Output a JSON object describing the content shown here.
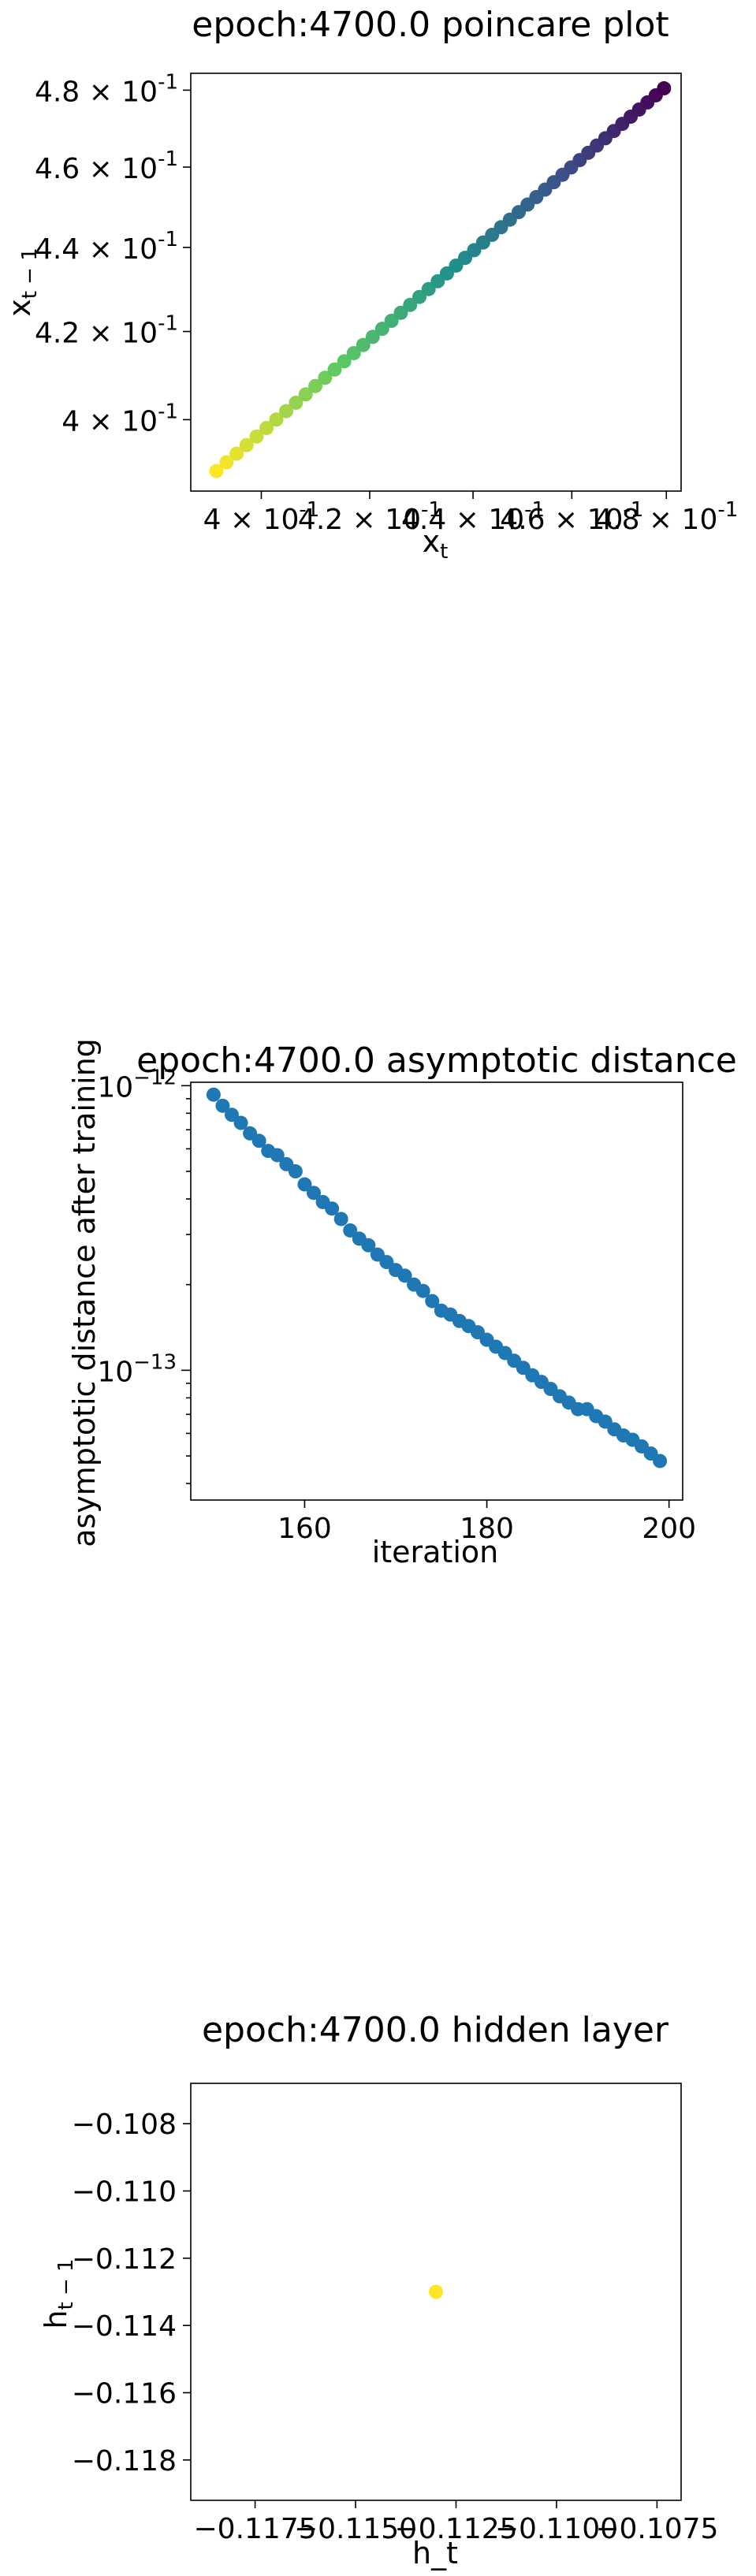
{
  "chart_data": [
    {
      "type": "scatter",
      "title": "epoch:4700.0 poincare plot",
      "xlabel": "x_t",
      "ylabel": "x_{t-1}",
      "x_scale": "log",
      "y_scale": "log",
      "xlim": [
        0.3875,
        0.4832
      ],
      "ylim": [
        0.3845,
        0.4845
      ],
      "x_ticks": [
        {
          "value": 0.4,
          "base": "4",
          "exp": "-1"
        },
        {
          "value": 0.42,
          "base": "4.2",
          "exp": "-1"
        },
        {
          "value": 0.44,
          "base": "4.4",
          "exp": "-1"
        },
        {
          "value": 0.46,
          "base": "4.6",
          "exp": "-1"
        },
        {
          "value": 0.48,
          "base": "4.8",
          "exp": "-1"
        }
      ],
      "y_ticks": [
        {
          "value": 0.4,
          "base": "4",
          "exp": "-1"
        },
        {
          "value": 0.42,
          "base": "4.2",
          "exp": "-1"
        },
        {
          "value": 0.44,
          "base": "4.4",
          "exp": "-1"
        },
        {
          "value": 0.46,
          "base": "4.6",
          "exp": "-1"
        },
        {
          "value": 0.48,
          "base": "4.8",
          "exp": "-1"
        }
      ],
      "grid": false,
      "colormap": "viridis",
      "points": {
        "count": 50,
        "x_first": 0.392,
        "x_last": 0.4795,
        "y_first": 0.3888,
        "y_last": 0.4805
      }
    },
    {
      "type": "scatter",
      "title": "epoch:4700.0 asymptotic distance",
      "xlabel": "iteration",
      "ylabel": "asymptotic distance after training",
      "y_scale": "log",
      "xlim": [
        147.5,
        201.5
      ],
      "ylim_log10": [
        -13.456,
        -11.988
      ],
      "x_ticks": [
        160,
        180,
        200
      ],
      "y_ticks": [
        {
          "value": 1e-12,
          "base": "10",
          "exp": "−12"
        },
        {
          "value": 1e-13,
          "base": "10",
          "exp": "−13"
        }
      ],
      "grid": false,
      "color": "#1f77b4",
      "series": [
        {
          "x": [
            150,
            151,
            152,
            153,
            154,
            155,
            156,
            157,
            158,
            159,
            160,
            161,
            162,
            163,
            164,
            165,
            166,
            167,
            168,
            169,
            170,
            171,
            172,
            173,
            174,
            175,
            176,
            177,
            178,
            179,
            180,
            181,
            182,
            183,
            184,
            185,
            186,
            187,
            188,
            189,
            190,
            191,
            192,
            193,
            194,
            195,
            196,
            197,
            198,
            199
          ],
          "y": [
            9.3e-13,
            8.5e-13,
            7.9e-13,
            7.4e-13,
            6.8e-13,
            6.4e-13,
            5.9e-13,
            5.7e-13,
            5.3e-13,
            5e-13,
            4.5e-13,
            4.2e-13,
            3.9e-13,
            3.7e-13,
            3.4e-13,
            3.1e-13,
            2.9e-13,
            2.75e-13,
            2.55e-13,
            2.4e-13,
            2.25e-13,
            2.15e-13,
            2e-13,
            1.9e-13,
            1.75e-13,
            1.62e-13,
            1.57e-13,
            1.49e-13,
            1.43e-13,
            1.36e-13,
            1.28e-13,
            1.21e-13,
            1.15e-13,
            1.08e-13,
            1.02e-13,
            9.6e-14,
            9.1e-14,
            8.6e-14,
            8.1e-14,
            7.7e-14,
            7.3e-14,
            7.3e-14,
            6.9e-14,
            6.6e-14,
            6.2e-14,
            5.9e-14,
            5.7e-14,
            5.4e-14,
            5.1e-14,
            4.8e-14
          ]
        }
      ]
    },
    {
      "type": "scatter",
      "title": "epoch:4700.0 hidden layer",
      "xlabel": "h_t",
      "ylabel": "h_{t-1}",
      "xlim": [
        -0.1191,
        -0.1069
      ],
      "ylim": [
        -0.1192,
        -0.1068
      ],
      "x_ticks": [
        {
          "value": -0.1175,
          "label": "−0.1175"
        },
        {
          "value": -0.115,
          "label": "−0.1150"
        },
        {
          "value": -0.1125,
          "label": "−0.1125"
        },
        {
          "value": -0.11,
          "label": "−0.1100"
        },
        {
          "value": -0.1075,
          "label": "−0.1075"
        }
      ],
      "y_ticks": [
        {
          "value": -0.108,
          "label": "−0.108"
        },
        {
          "value": -0.11,
          "label": "−0.110"
        },
        {
          "value": -0.112,
          "label": "−0.112"
        },
        {
          "value": -0.114,
          "label": "−0.114"
        },
        {
          "value": -0.116,
          "label": "−0.116"
        },
        {
          "value": -0.118,
          "label": "−0.118"
        }
      ],
      "grid": false,
      "color": "#fde725",
      "series": [
        {
          "x": [
            -0.113
          ],
          "y": [
            -0.113
          ]
        }
      ]
    }
  ]
}
